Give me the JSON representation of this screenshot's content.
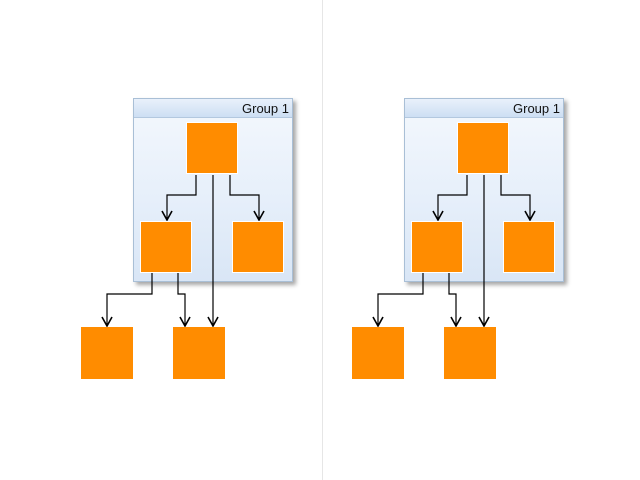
{
  "diagrams": [
    {
      "group": {
        "title": "Group 1"
      }
    },
    {
      "group": {
        "title": "Group 1"
      }
    }
  ],
  "colors": {
    "node_fill": "#ff8c00",
    "group_fill": "#e6effa",
    "group_border": "#a9bfd6",
    "edge": "#000000",
    "divider": "#e6e6e6"
  }
}
